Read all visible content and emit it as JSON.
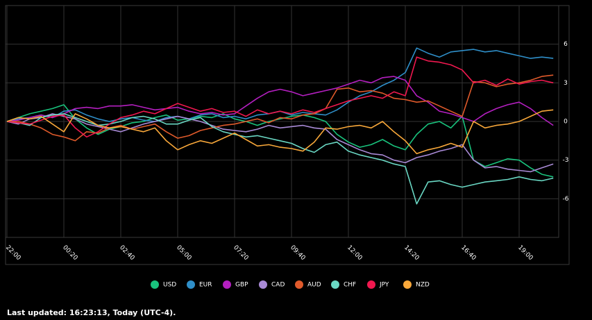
{
  "chart_data": {
    "type": "line",
    "categories": [
      "22:00",
      null,
      null,
      null,
      null,
      "00:20",
      null,
      null,
      null,
      null,
      "02:40",
      null,
      null,
      null,
      null,
      "05:00",
      null,
      null,
      null,
      null,
      "07:20",
      null,
      null,
      null,
      null,
      "09:40",
      null,
      null,
      null,
      null,
      "12:00",
      null,
      null,
      null,
      null,
      "14:20",
      null,
      null,
      null,
      null,
      "16:40",
      null,
      null,
      null,
      null,
      "19:00",
      null,
      null,
      null
    ],
    "ylim": [
      -9,
      9
    ],
    "yticks": [
      -6,
      -3,
      0,
      3,
      6
    ],
    "grid": true,
    "legend": "bottom",
    "series": [
      {
        "name": "USD",
        "color": "#19c37d",
        "values": [
          0,
          0.3,
          0.6,
          0.8,
          1.0,
          1.3,
          0.2,
          -0.5,
          -1.0,
          -0.6,
          -0.4,
          -0.1,
          0.0,
          0.3,
          0.5,
          0.1,
          0.2,
          0.4,
          0.3,
          0.6,
          0.2,
          0.0,
          -0.3,
          0.0,
          0.2,
          0.4,
          0.5,
          0.3,
          0.0,
          -1.0,
          -1.6,
          -2.0,
          -1.8,
          -1.4,
          -1.9,
          -2.2,
          -1.0,
          -0.2,
          0.0,
          -0.5,
          0.4,
          -3.0,
          -3.5,
          -3.2,
          -2.9,
          -3.0,
          -3.6,
          -4.1,
          -4.3
        ]
      },
      {
        "name": "EUR",
        "color": "#2f8fc9",
        "values": [
          0,
          0.2,
          0.3,
          0.5,
          0.3,
          0.8,
          0.9,
          0.5,
          0.2,
          0,
          0.2,
          0.3,
          0.1,
          0.0,
          0.3,
          0.4,
          0.2,
          0.5,
          0.6,
          0.3,
          0.4,
          0.2,
          0.5,
          0.6,
          0.8,
          0.5,
          0.7,
          0.6,
          0.5,
          0.9,
          1.5,
          2.0,
          2.3,
          2.8,
          3.2,
          3.8,
          5.7,
          5.3,
          5.0,
          5.4,
          5.5,
          5.6,
          5.4,
          5.5,
          5.3,
          5.1,
          4.9,
          5.0,
          4.9
        ]
      },
      {
        "name": "GBP",
        "color": "#b41fc0",
        "values": [
          0,
          0.1,
          0.3,
          0.5,
          0.3,
          0.6,
          1.0,
          1.1,
          1.0,
          1.2,
          1.2,
          1.3,
          1.1,
          0.9,
          1.0,
          1.1,
          0.8,
          0.6,
          0.7,
          0.5,
          0.6,
          1.2,
          1.8,
          2.3,
          2.5,
          2.3,
          2.0,
          2.2,
          2.4,
          2.6,
          2.9,
          3.2,
          3.0,
          3.4,
          3.5,
          3.2,
          2.0,
          1.5,
          0.8,
          0.6,
          0.3,
          0.0,
          0.6,
          1.0,
          1.3,
          1.5,
          1.0,
          0.3,
          -0.3
        ]
      },
      {
        "name": "CAD",
        "color": "#a98ad6",
        "values": [
          0,
          -0.2,
          0.2,
          0.3,
          0.6,
          0.4,
          0.2,
          -0.2,
          -0.4,
          -0.6,
          -0.8,
          -0.5,
          -0.2,
          0.0,
          0.2,
          0.4,
          0.2,
          0.0,
          -0.3,
          -0.6,
          -0.7,
          -0.8,
          -0.6,
          -0.3,
          -0.5,
          -0.4,
          -0.3,
          -0.5,
          -0.6,
          -1.4,
          -1.8,
          -2.2,
          -2.5,
          -2.6,
          -3.0,
          -3.2,
          -2.8,
          -2.6,
          -2.3,
          -2.1,
          -1.8,
          -3.0,
          -3.6,
          -3.5,
          -3.7,
          -3.8,
          -3.9,
          -3.6,
          -3.3
        ]
      },
      {
        "name": "AUD",
        "color": "#e05a2b",
        "values": [
          0,
          0,
          -0.2,
          -0.5,
          -1.0,
          -1.2,
          -1.5,
          -0.8,
          -0.9,
          -0.5,
          -0.3,
          -0.6,
          -0.4,
          -0.2,
          -0.8,
          -1.3,
          -1.1,
          -0.7,
          -0.5,
          -0.3,
          -0.2,
          0.0,
          0.2,
          -0.1,
          0.3,
          0.2,
          0.5,
          0.6,
          1.0,
          2.5,
          2.6,
          2.3,
          2.4,
          2.2,
          1.8,
          1.7,
          1.5,
          1.6,
          1.2,
          0.8,
          0.4,
          3.1,
          3.0,
          2.7,
          2.9,
          3.0,
          3.2,
          3.5,
          3.6
        ]
      },
      {
        "name": "CHF",
        "color": "#6ad8c4",
        "values": [
          0,
          -0.1,
          -0.3,
          0.3,
          0.5,
          0.6,
          0.3,
          0.0,
          -0.3,
          -0.2,
          0.0,
          0.3,
          0.4,
          0.2,
          -0.2,
          -0.2,
          0.1,
          0.3,
          -0.4,
          -0.8,
          -1.0,
          -1.2,
          -1.1,
          -1.3,
          -1.5,
          -1.7,
          -2.1,
          -2.4,
          -1.8,
          -1.6,
          -2.3,
          -2.6,
          -2.8,
          -3.0,
          -3.3,
          -3.5,
          -6.4,
          -4.7,
          -4.6,
          -4.9,
          -5.1,
          -4.9,
          -4.7,
          -4.6,
          -4.5,
          -4.3,
          -4.5,
          -4.6,
          -4.4
        ]
      },
      {
        "name": "JPY",
        "color": "#f0184f",
        "values": [
          0,
          -0.1,
          -0.2,
          0.1,
          0.4,
          0.5,
          -0.5,
          -1.2,
          -0.8,
          -0.2,
          0.3,
          0.5,
          0.8,
          0.6,
          1.0,
          1.4,
          1.1,
          0.8,
          1.0,
          0.7,
          0.8,
          0.4,
          0.9,
          0.6,
          0.8,
          0.6,
          0.9,
          0.7,
          1.0,
          1.3,
          1.6,
          1.8,
          2.0,
          1.8,
          2.3,
          2.0,
          5.0,
          4.7,
          4.6,
          4.4,
          4.0,
          3.0,
          3.2,
          2.8,
          3.3,
          2.9,
          3.1,
          3.2,
          3.0
        ]
      },
      {
        "name": "NZD",
        "color": "#f9a83a",
        "values": [
          0,
          0.3,
          0.2,
          0.4,
          -0.2,
          -0.8,
          0.6,
          0.2,
          -0.3,
          -0.5,
          -0.4,
          -0.6,
          -0.8,
          -0.5,
          -1.5,
          -2.2,
          -1.8,
          -1.5,
          -1.7,
          -1.3,
          -0.9,
          -1.4,
          -1.9,
          -1.8,
          -2.0,
          -2.1,
          -2.3,
          -1.6,
          -0.5,
          -0.6,
          -0.4,
          -0.3,
          -0.5,
          0.0,
          -0.8,
          -1.5,
          -2.5,
          -2.2,
          -2.0,
          -1.7,
          -2.0,
          0.0,
          -0.5,
          -0.3,
          -0.2,
          0.0,
          0.4,
          0.8,
          0.9
        ]
      }
    ]
  },
  "footer": "Last updated: 16:23:13, Today (UTC-4)."
}
